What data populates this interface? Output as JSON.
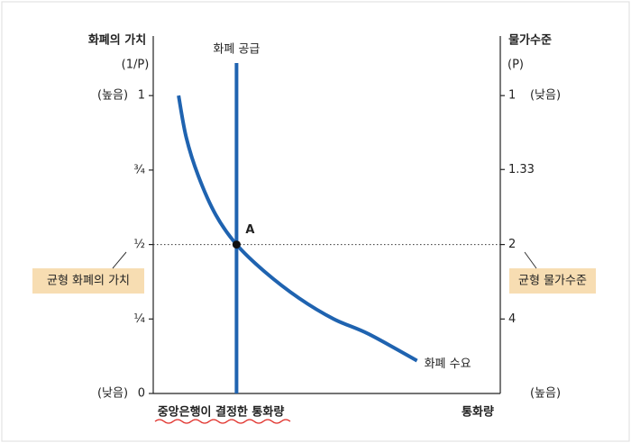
{
  "chart_data": {
    "type": "line",
    "ylabel": "화폐의 가치",
    "ylabel_unit": "(1/P)",
    "y_top_note": "(높음)",
    "y_bottom_note": "(낮음)",
    "y2label": "물가수준",
    "y2label_unit": "(P)",
    "y2_top_note": "(낮음)",
    "y2_bottom_note": "(높음)",
    "xlabel": "통화량",
    "x_note": "중앙은행이 결정한 통화량",
    "xlim": [
      0,
      10
    ],
    "ylim": [
      0,
      1.2
    ],
    "yticks": [
      1,
      {
        "value": 0.75,
        "label": "¾"
      },
      {
        "value": 0.5,
        "label": "½"
      },
      {
        "value": 0.25,
        "label": "¼"
      },
      0
    ],
    "y2scale": "reciprocal",
    "y2ticks": [
      1,
      1.33,
      2,
      4
    ],
    "series": [
      {
        "name": "화폐 수요",
        "color": "#1f63b0",
        "x": [
          0.73,
          0.95,
          1.3,
          1.8,
          2.4,
          3.2,
          4.2,
          5.2,
          6.2,
          7.6
        ],
        "values": [
          1.0,
          0.86,
          0.73,
          0.6,
          0.5,
          0.41,
          0.32,
          0.25,
          0.2,
          0.11
        ]
      },
      {
        "name": "화폐 공급",
        "color": "#1f63b0",
        "x": 2.4
      }
    ],
    "equilibrium": {
      "label": "A",
      "x": 2.4,
      "y": 0.5
    },
    "equilibrium_value_label": "균형 화폐의 가치",
    "equilibrium_price_label": "균형 물가수준"
  }
}
